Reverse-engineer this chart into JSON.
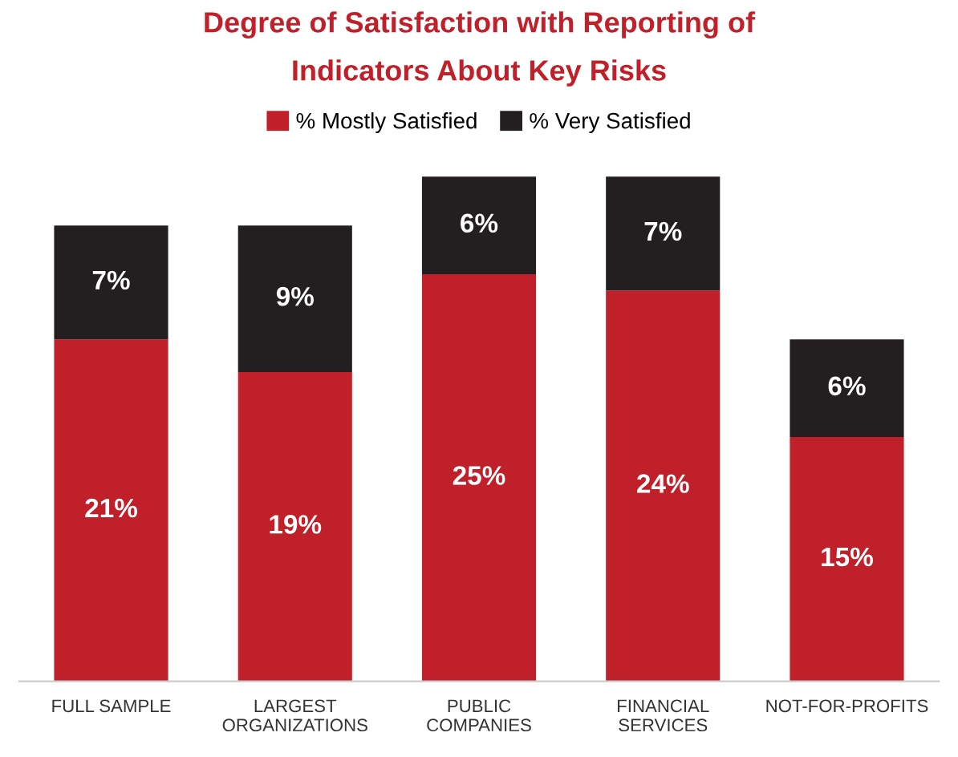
{
  "chart_data": {
    "type": "bar",
    "stacked": true,
    "title": "Degree of Satisfaction with Reporting of\nIndicators About Key Risks",
    "categories": [
      "FULL SAMPLE",
      "LARGEST\nORGANIZATIONS",
      "PUBLIC\nCOMPANIES",
      "FINANCIAL\nSERVICES",
      "NOT-FOR-PROFITS"
    ],
    "series": [
      {
        "name": "% Mostly Satisfied",
        "color": "#c0202a",
        "values": [
          21,
          19,
          25,
          24,
          15
        ],
        "value_labels": [
          "21%",
          "19%",
          "25%",
          "24%",
          "15%"
        ]
      },
      {
        "name": "% Very Satisfied",
        "color": "#231f20",
        "values": [
          7,
          9,
          6,
          7,
          6
        ],
        "value_labels": [
          "7%",
          "9%",
          "6%",
          "7%",
          "6%"
        ]
      }
    ],
    "legend": "top",
    "grid": false
  }
}
